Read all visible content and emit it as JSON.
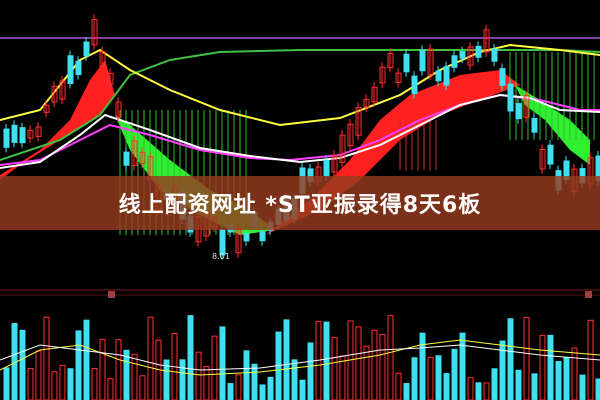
{
  "headline": "线上配资网址 *ST亚振录得8天6板",
  "chart_data": {
    "type": "candlestick",
    "annotations": [
      "8.01"
    ],
    "colors": {
      "up": "#ff3030",
      "down": "#40e0f0",
      "ma_short": "#ffffff",
      "ma_mid": "#ffff40",
      "ma_long": "#40c040",
      "ma_other": "#ff40ff",
      "ribbon_up": "#ff2020",
      "ribbon_down": "#30ff30",
      "banner": "#963c1e"
    }
  }
}
